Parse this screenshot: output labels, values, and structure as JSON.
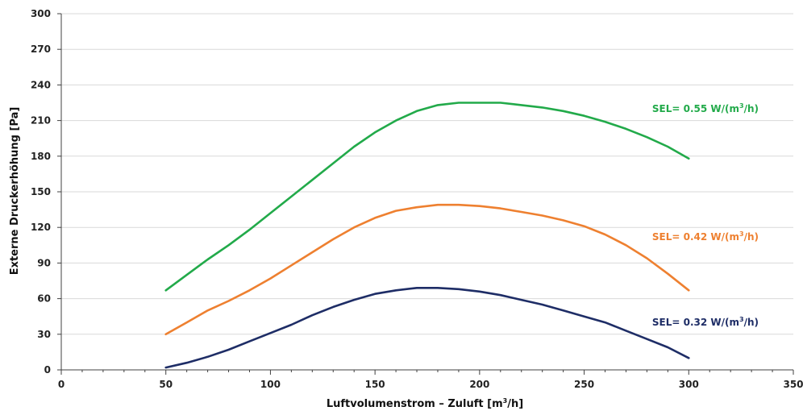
{
  "chart_data": {
    "type": "line",
    "title": "",
    "xlabel": {
      "pre": "Luftvolumenstrom – Zuluft [m",
      "sup": "3",
      "post": "/h]"
    },
    "ylabel": "Externe Druckerhöhung [Pa]",
    "xlim": [
      0,
      350
    ],
    "ylim": [
      0,
      300
    ],
    "xticks": [
      0,
      50,
      100,
      150,
      200,
      250,
      300,
      350
    ],
    "yticks": [
      0,
      30,
      60,
      90,
      120,
      150,
      180,
      210,
      240,
      270,
      300
    ],
    "grid": {
      "horizontal": true,
      "vertical": false
    },
    "x": [
      50,
      60,
      70,
      80,
      90,
      100,
      110,
      120,
      130,
      140,
      150,
      160,
      170,
      180,
      190,
      200,
      210,
      220,
      230,
      240,
      250,
      260,
      270,
      280,
      290,
      300
    ],
    "series": [
      {
        "color": "#22aa4a",
        "label": {
          "pre": "SEL= 0.55 W/(m",
          "sup": "3",
          "post": "/h)"
        },
        "values": [
          67,
          80,
          93,
          105,
          118,
          132,
          146,
          160,
          174,
          188,
          200,
          210,
          218,
          223,
          225,
          225,
          225,
          223,
          221,
          218,
          214,
          209,
          203,
          196,
          188,
          178
        ]
      },
      {
        "color": "#ee8030",
        "label": {
          "pre": "SEL= 0.42 W/(m",
          "sup": "3",
          "post": "/h)"
        },
        "values": [
          30,
          40,
          50,
          58,
          67,
          77,
          88,
          99,
          110,
          120,
          128,
          134,
          137,
          139,
          139,
          138,
          136,
          133,
          130,
          126,
          121,
          114,
          105,
          94,
          81,
          67
        ]
      },
      {
        "color": "#1e2d66",
        "label": {
          "pre": "SEL= 0.32 W/(m",
          "sup": "3",
          "post": "/h)"
        },
        "values": [
          2,
          6,
          11,
          17,
          24,
          31,
          38,
          46,
          53,
          59,
          64,
          67,
          69,
          69,
          68,
          66,
          63,
          59,
          55,
          50,
          45,
          40,
          33,
          26,
          19,
          10
        ]
      }
    ]
  }
}
